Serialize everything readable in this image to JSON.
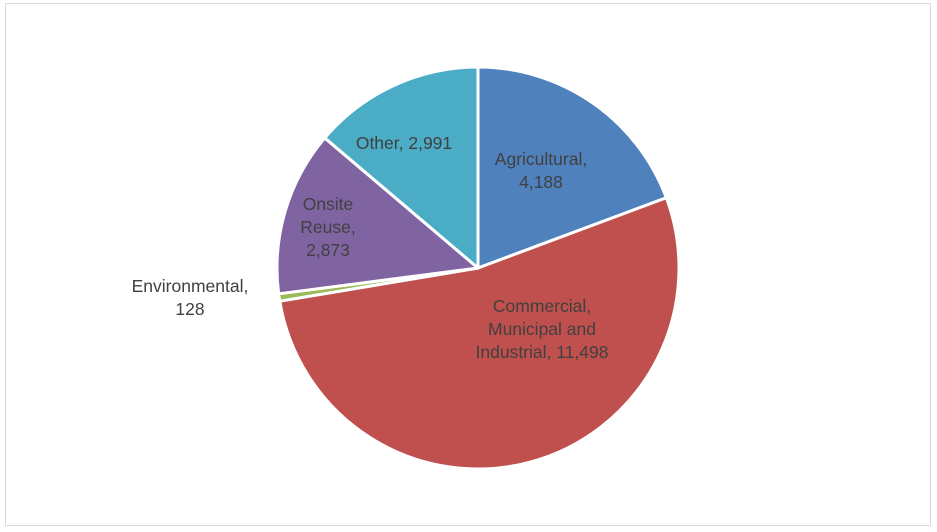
{
  "chart_data": {
    "type": "pie",
    "title": "",
    "start_angle_deg": 0,
    "direction": "clockwise",
    "slices": [
      {
        "category": "Agricultural",
        "value": 4188,
        "label_lines": [
          "Agricultural,",
          "4,188"
        ],
        "color": "#4f81bd"
      },
      {
        "category": "Commercial, Municipal and Industrial",
        "value": 11498,
        "label_lines": [
          "Commercial,",
          "Municipal and",
          "Industrial, 11,498"
        ],
        "color": "#c0504d"
      },
      {
        "category": "Environmental",
        "value": 128,
        "label_lines": [
          "Environmental,",
          "128"
        ],
        "color": "#9bbb59"
      },
      {
        "category": "Onsite Reuse",
        "value": 2873,
        "label_lines": [
          "Onsite",
          "Reuse,",
          "2,873"
        ],
        "color": "#8064a2"
      },
      {
        "category": "Other",
        "value": 2991,
        "label_lines": [
          "Other, 2,991"
        ],
        "color": "#4bacc6"
      }
    ]
  }
}
